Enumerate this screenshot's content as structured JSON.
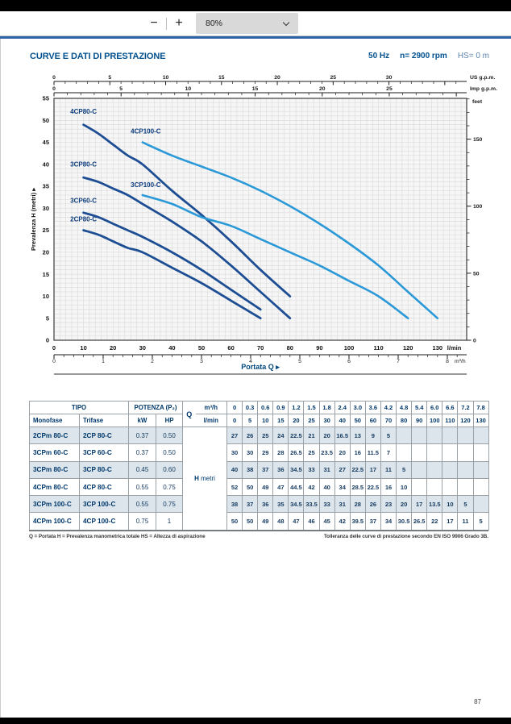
{
  "toolbar": {
    "zoom_out_label": "−",
    "zoom_in_label": "+",
    "zoom_level": "80%"
  },
  "page": {
    "title": "CURVE E DATI DI PRESTAZIONE",
    "frequency": "50 Hz",
    "speed": "n= 2900 rpm",
    "suction": "HS= 0 m",
    "footnote_left": "Q = Portata   H = Prevalenza manometrica totale   HS = Altezza di aspirazione",
    "footnote_right": "Tolleranza delle curve di prestazione secondo EN ISO 9906 Grado 3B.",
    "page_number": "87"
  },
  "chart_data": {
    "type": "line",
    "title": "",
    "xlabel": "Portata Q  ▸",
    "ylabel": "Prevalenza H (metri)  ▸",
    "colors": {
      "dark": "#1d4e94",
      "light": "#2b99d8",
      "plot_bg": "#f6f6f6",
      "grid": "#d8d8d8"
    },
    "y_axis": {
      "max": 55,
      "labels": [
        0,
        5,
        10,
        15,
        20,
        25,
        30,
        35,
        40,
        45,
        50,
        55
      ]
    },
    "right_axis": {
      "unit": "feet",
      "labels": [
        0,
        50,
        100,
        150
      ],
      "m_per_unit": 0.3048
    },
    "x_axis_lmin": {
      "unit": "l/min",
      "labels": [
        0,
        10,
        20,
        30,
        40,
        50,
        60,
        70,
        80,
        90,
        100,
        110,
        120,
        130
      ]
    },
    "x_axis_m3h": {
      "unit": "m³/h",
      "labels": [
        0,
        1,
        2,
        3,
        4,
        5,
        6,
        7,
        8
      ],
      "lmin_per_unit": 16.667
    },
    "top_axis_us": {
      "unit": "US g.p.m.",
      "labels": [
        0,
        5,
        10,
        15,
        20,
        25,
        30
      ],
      "lmin_per_unit": 3.785
    },
    "top_axis_imp": {
      "unit": "Imp g.p.m.",
      "labels": [
        0,
        5,
        10,
        15,
        20,
        25
      ],
      "lmin_per_unit": 4.546
    },
    "series": [
      {
        "name": "4CP80-C",
        "color_key": "dark",
        "label_pos": [
          5.5,
          51.5
        ],
        "points": [
          [
            10,
            49
          ],
          [
            15,
            47
          ],
          [
            20,
            44.5
          ],
          [
            25,
            42
          ],
          [
            30,
            40
          ],
          [
            40,
            34
          ],
          [
            50,
            28.5
          ],
          [
            60,
            22.5
          ],
          [
            70,
            16
          ],
          [
            80,
            10
          ]
        ]
      },
      {
        "name": "4CP100-C",
        "color_key": "light",
        "label_pos": [
          26,
          47
        ],
        "points": [
          [
            30,
            45
          ],
          [
            40,
            42
          ],
          [
            50,
            39.5
          ],
          [
            60,
            37
          ],
          [
            70,
            34
          ],
          [
            80,
            30.5
          ],
          [
            90,
            26.5
          ],
          [
            100,
            22
          ],
          [
            110,
            17
          ],
          [
            120,
            11
          ],
          [
            130,
            5
          ]
        ]
      },
      {
        "name": "3CP80-C",
        "color_key": "dark",
        "label_pos": [
          5.5,
          39.5
        ],
        "points": [
          [
            10,
            37
          ],
          [
            15,
            36
          ],
          [
            20,
            34.5
          ],
          [
            25,
            33
          ],
          [
            30,
            31
          ],
          [
            40,
            27
          ],
          [
            50,
            22.5
          ],
          [
            60,
            17
          ],
          [
            70,
            11
          ],
          [
            80,
            5
          ]
        ]
      },
      {
        "name": "3CP100-C",
        "color_key": "light",
        "label_pos": [
          26,
          34.8
        ],
        "points": [
          [
            30,
            33
          ],
          [
            40,
            31
          ],
          [
            50,
            28
          ],
          [
            60,
            26
          ],
          [
            70,
            23
          ],
          [
            80,
            20
          ],
          [
            90,
            17
          ],
          [
            100,
            13.5
          ],
          [
            110,
            10
          ],
          [
            120,
            5
          ]
        ]
      },
      {
        "name": "3CP60-C",
        "color_key": "dark",
        "label_pos": [
          5.5,
          31.3
        ],
        "points": [
          [
            10,
            29
          ],
          [
            15,
            28
          ],
          [
            20,
            26.5
          ],
          [
            25,
            25
          ],
          [
            30,
            23.5
          ],
          [
            40,
            20
          ],
          [
            50,
            16
          ],
          [
            60,
            11.5
          ],
          [
            70,
            7
          ]
        ]
      },
      {
        "name": "2CP80-C",
        "color_key": "dark",
        "label_pos": [
          5.5,
          27
        ],
        "points": [
          [
            10,
            25
          ],
          [
            15,
            24
          ],
          [
            20,
            22.5
          ],
          [
            25,
            21
          ],
          [
            30,
            20
          ],
          [
            40,
            16.5
          ],
          [
            50,
            13
          ],
          [
            60,
            9
          ],
          [
            70,
            5
          ]
        ]
      }
    ]
  },
  "table": {
    "headers": {
      "tipo": "TIPO",
      "monofase": "Monofase",
      "trifase": "Trifase",
      "potenza": "POTENZA (P₂)",
      "kw": "kW",
      "hp": "HP",
      "q": "Q",
      "m3h": "m³/h",
      "lmin": "l/min",
      "h_label": "H",
      "h_unit": "metri"
    },
    "q_m3h": [
      "0",
      "0.3",
      "0.6",
      "0.9",
      "1.2",
      "1.5",
      "1.8",
      "2.4",
      "3.0",
      "3.6",
      "4.2",
      "4.8",
      "5.4",
      "6.0",
      "6.6",
      "7.2",
      "7.8"
    ],
    "q_lmin": [
      "0",
      "5",
      "10",
      "15",
      "20",
      "25",
      "30",
      "40",
      "50",
      "60",
      "70",
      "80",
      "90",
      "100",
      "110",
      "120",
      "130"
    ],
    "rows": [
      {
        "monofase": "2CPm 80-C",
        "trifase": "2CP 80-C",
        "kw": "0.37",
        "hp": "0.50",
        "h": [
          "27",
          "26",
          "25",
          "24",
          "22.5",
          "21",
          "20",
          "16.5",
          "13",
          "9",
          "5",
          "",
          "",
          "",
          "",
          "",
          ""
        ]
      },
      {
        "monofase": "3CPm 60-C",
        "trifase": "3CP 60-C",
        "kw": "0.37",
        "hp": "0.50",
        "h": [
          "30",
          "30",
          "29",
          "28",
          "26.5",
          "25",
          "23.5",
          "20",
          "16",
          "11.5",
          "7",
          "",
          "",
          "",
          "",
          "",
          ""
        ]
      },
      {
        "monofase": "3CPm 80-C",
        "trifase": "3CP 80-C",
        "kw": "0.45",
        "hp": "0.60",
        "h": [
          "40",
          "38",
          "37",
          "36",
          "34.5",
          "33",
          "31",
          "27",
          "22.5",
          "17",
          "11",
          "5",
          "",
          "",
          "",
          "",
          ""
        ]
      },
      {
        "monofase": "4CPm 80-C",
        "trifase": "4CP 80-C",
        "kw": "0.55",
        "hp": "0.75",
        "h": [
          "52",
          "50",
          "49",
          "47",
          "44.5",
          "42",
          "40",
          "34",
          "28.5",
          "22.5",
          "16",
          "10",
          "",
          "",
          "",
          "",
          ""
        ]
      },
      {
        "monofase": "3CPm 100-C",
        "trifase": "3CP 100-C",
        "kw": "0.55",
        "hp": "0.75",
        "h": [
          "38",
          "37",
          "36",
          "35",
          "34.5",
          "33.5",
          "33",
          "31",
          "28",
          "26",
          "23",
          "20",
          "17",
          "13.5",
          "10",
          "5",
          ""
        ]
      },
      {
        "monofase": "4CPm 100-C",
        "trifase": "4CP 100-C",
        "kw": "0.75",
        "hp": "1",
        "h": [
          "50",
          "50",
          "49",
          "48",
          "47",
          "46",
          "45",
          "42",
          "39.5",
          "37",
          "34",
          "30.5",
          "26.5",
          "22",
          "17",
          "11",
          "5"
        ]
      }
    ]
  }
}
